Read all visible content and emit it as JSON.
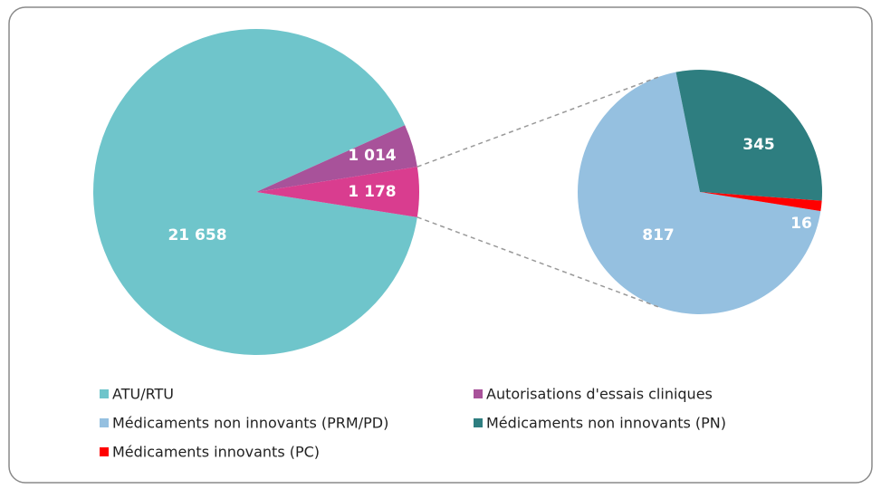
{
  "chart_data": {
    "type": "pie",
    "categories": [
      "ATU/RTU",
      "Autorisations d'essais cliniques",
      null
    ],
    "values": [
      21658,
      1014,
      1178
    ],
    "value_labels": [
      "21 658",
      "1 014",
      "1 178"
    ],
    "colors": [
      "#6fc5cb",
      "#a8529a",
      "#d93d8f"
    ],
    "secondary": {
      "type": "pie",
      "categories": [
        "Médicaments non innovants (PRM/PD)",
        "Médicaments non innovants (PN)",
        "Médicaments innovants (PC)"
      ],
      "values": [
        817,
        345,
        16
      ],
      "colors": [
        "#95c0e0",
        "#2e7e80",
        "#ff0000"
      ]
    }
  }
}
